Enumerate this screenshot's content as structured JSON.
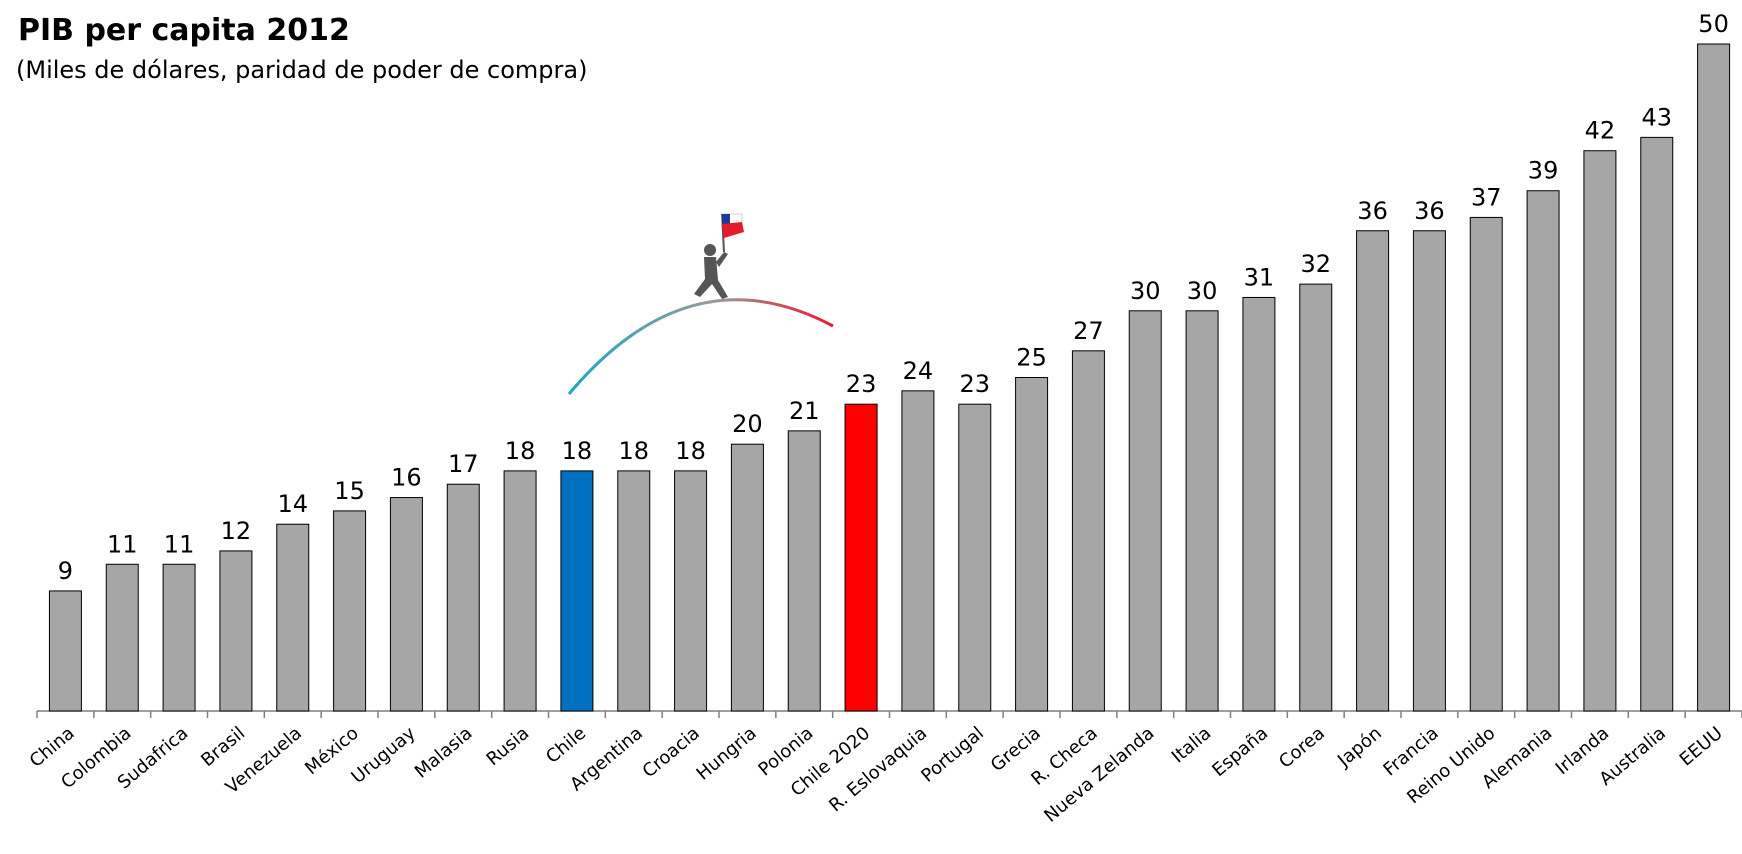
{
  "chart_data": {
    "type": "bar",
    "title": "PIB per capita  2012",
    "subtitle": "(Miles de dólares, paridad de poder de compra)",
    "categories": [
      "China",
      "Colombia",
      "Sudafrica",
      "Brasil",
      "Venezuela",
      "México",
      "Uruguay",
      "Malasia",
      "Rusia",
      "Chile",
      "Argentina",
      "Croacia",
      "Hungria",
      "Polonia",
      "Chile 2020",
      "R. Eslovaquia",
      "Portugal",
      "Grecia",
      "R. Checa",
      "Nueva Zelanda",
      "Italia",
      "España",
      "Corea",
      "Japón",
      "Francia",
      "Reino Unido",
      "Alemania",
      "Irlanda",
      "Australia",
      "EEUU"
    ],
    "values": [
      9,
      11,
      11,
      12,
      14,
      15,
      16,
      17,
      18,
      18,
      18,
      18,
      20,
      21,
      23,
      24,
      23,
      25,
      27,
      30,
      30,
      31,
      32,
      36,
      36,
      37,
      39,
      42,
      43,
      50
    ],
    "colors": [
      "#a6a6a6",
      "#a6a6a6",
      "#a6a6a6",
      "#a6a6a6",
      "#a6a6a6",
      "#a6a6a6",
      "#a6a6a6",
      "#a6a6a6",
      "#a6a6a6",
      "#0070c0",
      "#a6a6a6",
      "#a6a6a6",
      "#a6a6a6",
      "#a6a6a6",
      "#ff0000",
      "#a6a6a6",
      "#a6a6a6",
      "#a6a6a6",
      "#a6a6a6",
      "#a6a6a6",
      "#a6a6a6",
      "#a6a6a6",
      "#a6a6a6",
      "#a6a6a6",
      "#a6a6a6",
      "#a6a6a6",
      "#a6a6a6",
      "#a6a6a6",
      "#a6a6a6",
      "#a6a6a6"
    ],
    "ylim": [
      0,
      50
    ]
  }
}
